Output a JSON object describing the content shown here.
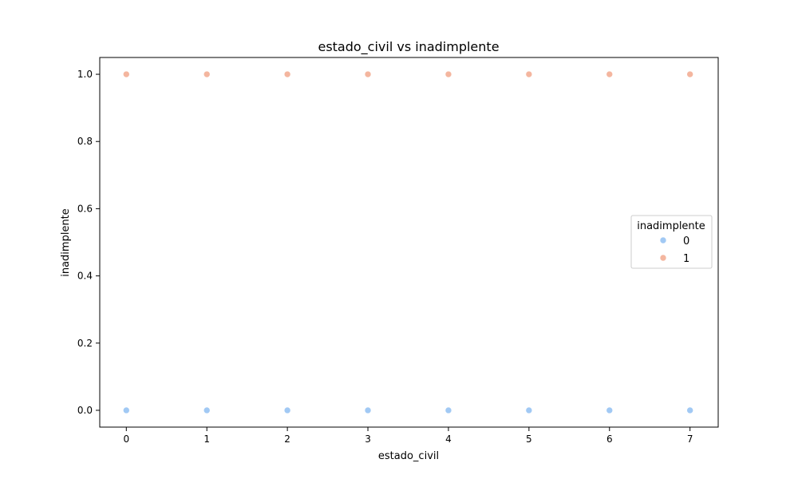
{
  "chart_data": {
    "type": "scatter",
    "title": "estado_civil vs inadimplente",
    "xlabel": "estado_civil",
    "ylabel": "inadimplente",
    "xlim": [
      -0.33,
      7.35
    ],
    "ylim": [
      -0.05,
      1.05
    ],
    "xticks": [
      0,
      1,
      2,
      3,
      4,
      5,
      6,
      7
    ],
    "yticks": [
      0.0,
      0.2,
      0.4,
      0.6,
      0.8,
      1.0
    ],
    "ytick_labels": [
      "0.0",
      "0.2",
      "0.4",
      "0.6",
      "0.8",
      "1.0"
    ],
    "grid": false,
    "legend": {
      "title": "inadimplente",
      "position": "center-right"
    },
    "series": [
      {
        "name": "0",
        "color": "#a1c9f4",
        "points": [
          [
            0,
            0
          ],
          [
            1,
            0
          ],
          [
            2,
            0
          ],
          [
            3,
            0
          ],
          [
            4,
            0
          ],
          [
            5,
            0
          ],
          [
            6,
            0
          ],
          [
            7,
            0
          ]
        ]
      },
      {
        "name": "1",
        "color": "#f4b69f",
        "points": [
          [
            0,
            1
          ],
          [
            1,
            1
          ],
          [
            2,
            1
          ],
          [
            3,
            1
          ],
          [
            4,
            1
          ],
          [
            5,
            1
          ],
          [
            6,
            1
          ],
          [
            7,
            1
          ]
        ]
      }
    ]
  }
}
